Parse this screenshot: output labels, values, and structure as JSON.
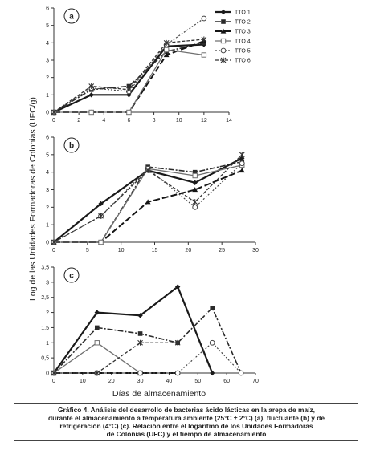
{
  "yaxis_label": "Log de las Unidades Formadoras de Colonias  (UFC/g)",
  "xaxis_label": "Días de almacenamiento",
  "caption": [
    "Gráfico 4. Análisis del desarrollo de bacterias ácido lácticas en la arepa de maíz,",
    "durante el almacenamiento a temperatura ambiente (25°C ± 2°C) (a), fluctuante (b) y de",
    "refrigeración (4°C) (c). Relación entre el logaritmo de los Unidades Formadoras",
    "de Colonias (UFC) y el tiempo de almacenamiento"
  ],
  "series_styles": [
    {
      "name": "TTO 1",
      "color": "#1a1a1a",
      "dash": "",
      "width": 2.2,
      "marker": "diamond"
    },
    {
      "name": "TTO 2",
      "color": "#2b2b2b",
      "dash": "7,2,2,2",
      "width": 1.6,
      "marker": "square"
    },
    {
      "name": "TTO 3",
      "color": "#151515",
      "dash": "8,3",
      "width": 2.0,
      "marker": "triangle"
    },
    {
      "name": "TTO 4",
      "color": "#707070",
      "dash": "",
      "width": 1.3,
      "marker": "square-open"
    },
    {
      "name": "TTO 5",
      "color": "#444444",
      "dash": "2,2",
      "width": 1.2,
      "marker": "circle-open"
    },
    {
      "name": "TTO 6",
      "color": "#333333",
      "dash": "4,2",
      "width": 1.3,
      "marker": "star"
    }
  ],
  "chart_data": [
    {
      "type": "line",
      "panel_label": "a",
      "xlim": [
        0,
        14
      ],
      "xticks": [
        0,
        2,
        4,
        6,
        8,
        10,
        12,
        14
      ],
      "ylim": [
        0,
        6
      ],
      "yticks": [
        0,
        1,
        2,
        3,
        4,
        5,
        6
      ],
      "legend": "top-right",
      "series": [
        {
          "name": "TTO 1",
          "x": [
            0,
            3,
            6,
            9,
            12
          ],
          "values": [
            0,
            1.0,
            1.0,
            3.8,
            3.9
          ]
        },
        {
          "name": "TTO 2",
          "x": [
            0,
            3,
            6,
            9,
            12
          ],
          "values": [
            0,
            1.3,
            1.5,
            3.5,
            4.0
          ]
        },
        {
          "name": "TTO 3",
          "x": [
            0,
            3,
            6,
            9,
            12
          ],
          "values": [
            0,
            0,
            0,
            3.3,
            4.1
          ]
        },
        {
          "name": "TTO 4",
          "x": [
            0,
            3,
            6,
            9,
            12
          ],
          "values": [
            0,
            0,
            0,
            3.6,
            3.3
          ]
        },
        {
          "name": "TTO 5",
          "x": [
            0,
            3,
            6,
            9,
            12
          ],
          "values": [
            0,
            1.4,
            1.2,
            3.9,
            5.4
          ]
        },
        {
          "name": "TTO 6",
          "x": [
            0,
            3,
            6,
            9,
            12
          ],
          "values": [
            0,
            1.5,
            1.3,
            4.0,
            4.2
          ]
        }
      ]
    },
    {
      "type": "line",
      "panel_label": "b",
      "xlim": [
        0,
        30
      ],
      "xticks": [
        0,
        5,
        10,
        15,
        20,
        25,
        30
      ],
      "ylim": [
        0,
        6
      ],
      "yticks": [
        0,
        1,
        2,
        3,
        4,
        5,
        6
      ],
      "series": [
        {
          "name": "TTO 1",
          "x": [
            0,
            7,
            14,
            21,
            28
          ],
          "values": [
            0,
            2.2,
            4.1,
            3.4,
            4.8
          ]
        },
        {
          "name": "TTO 2",
          "x": [
            0,
            7,
            14,
            21,
            28
          ],
          "values": [
            0,
            0,
            4.3,
            4.0,
            4.6
          ]
        },
        {
          "name": "TTO 3",
          "x": [
            0,
            7,
            14,
            21,
            28
          ],
          "values": [
            0,
            0,
            2.3,
            3.0,
            4.1
          ]
        },
        {
          "name": "TTO 4",
          "x": [
            0,
            7,
            14,
            21,
            28
          ],
          "values": [
            0,
            0,
            4.2,
            3.8,
            4.4
          ]
        },
        {
          "name": "TTO 5",
          "x": [
            0,
            7,
            14,
            21,
            28
          ],
          "values": [
            0,
            1.5,
            4.2,
            2.0,
            4.5
          ]
        },
        {
          "name": "TTO 6",
          "x": [
            0,
            7,
            14,
            21,
            28
          ],
          "values": [
            0,
            1.5,
            4.1,
            2.3,
            5.0
          ]
        }
      ]
    },
    {
      "type": "line",
      "panel_label": "c",
      "xlim": [
        0,
        70
      ],
      "xticks": [
        0,
        10,
        20,
        30,
        40,
        50,
        60,
        70
      ],
      "ylim": [
        0,
        3.5
      ],
      "yticks": [
        0,
        0.5,
        1,
        1.5,
        2,
        2.5,
        3,
        3.5
      ],
      "ytick_labels": [
        "0",
        "0,5",
        "1",
        "1,5",
        "2",
        "2,5",
        "3",
        "3,5"
      ],
      "series": [
        {
          "name": "TTO 1",
          "x": [
            0,
            15,
            30,
            43,
            55
          ],
          "values": [
            0,
            2.0,
            1.9,
            2.85,
            0
          ]
        },
        {
          "name": "TTO 2",
          "x": [
            0,
            15,
            30,
            43,
            55,
            65
          ],
          "values": [
            0,
            1.5,
            1.3,
            1.0,
            2.15,
            0
          ]
        },
        {
          "name": "TTO 3",
          "x": [
            0,
            15,
            30,
            43
          ],
          "values": [
            0,
            0,
            0,
            0
          ]
        },
        {
          "name": "TTO 4",
          "x": [
            0,
            15,
            30
          ],
          "values": [
            0,
            1.0,
            0
          ]
        },
        {
          "name": "TTO 5",
          "x": [
            0,
            15,
            30,
            43,
            55,
            65
          ],
          "values": [
            0,
            0,
            0,
            0,
            1.0,
            0
          ]
        },
        {
          "name": "TTO 6",
          "x": [
            0,
            15,
            30,
            43
          ],
          "values": [
            0,
            0,
            1.0,
            1.0
          ]
        }
      ]
    }
  ]
}
